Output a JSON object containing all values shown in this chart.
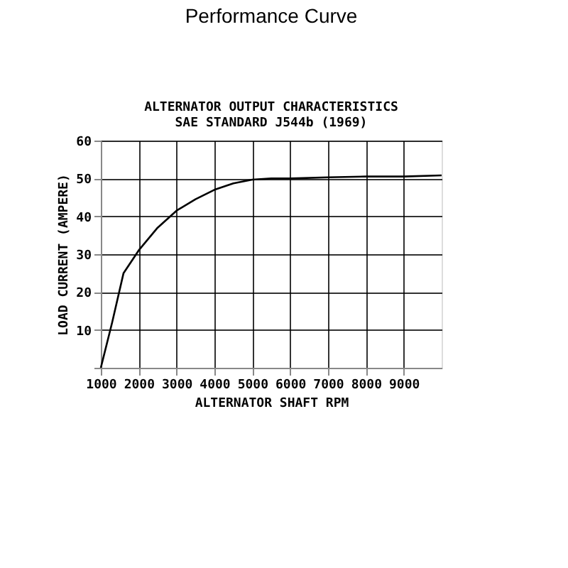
{
  "chart_data": {
    "type": "line",
    "title": "Performance Curve",
    "subtitle": "ALTERNATOR OUTPUT CHARACTERISTICS",
    "annotations": [
      "SAE STANDARD J544b (1969)"
    ],
    "xlabel": "ALTERNATOR SHAFT RPM",
    "ylabel": "LOAD CURRENT (AMPERE)",
    "x": [
      1000,
      1300,
      1600,
      2000,
      2500,
      3000,
      3500,
      4000,
      4500,
      5000,
      5500,
      6000,
      7000,
      8000,
      9000,
      10000
    ],
    "series": [
      {
        "color": "#000000",
        "values": [
          0,
          12,
          25,
          31,
          37,
          41.5,
          44.5,
          47,
          48.7,
          49.7,
          50,
          50,
          50.3,
          50.5,
          50.5,
          50.8
        ]
      }
    ],
    "xlim": [
      1000,
      10000
    ],
    "xticks": [
      1000,
      2000,
      3000,
      4000,
      5000,
      6000,
      7000,
      8000,
      9000
    ],
    "ylim": [
      0,
      60
    ],
    "yticks": [
      {
        "value": 0,
        "label": null
      },
      10,
      20,
      30,
      40,
      50,
      60
    ],
    "grid": true,
    "legend": false,
    "marker": "none",
    "line_style": "solid"
  }
}
